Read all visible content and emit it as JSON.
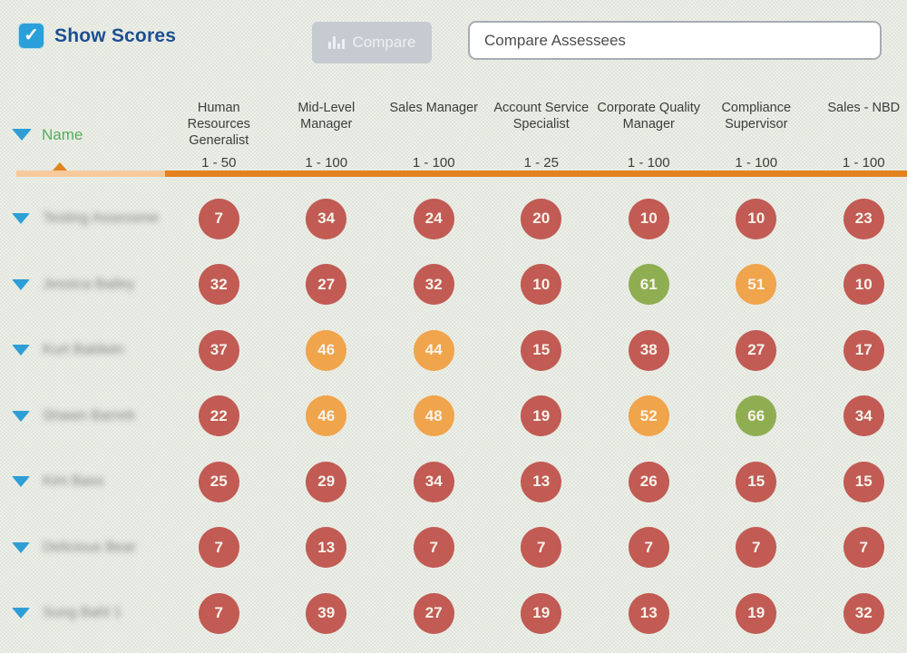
{
  "controls": {
    "show_scores_label": "Show Scores",
    "show_scores_checked": true,
    "checkmark_glyph": "✓",
    "compare_button_label": "Compare",
    "search_placeholder": "Compare Assessees"
  },
  "colors": {
    "score_red": "#c15b54",
    "score_orange": "#f0a44c",
    "score_green": "#8fae52",
    "checkbox_blue": "#2b9fd9",
    "show_scores_text_blue": "#1d4e91",
    "name_header_green": "#55ab5e",
    "sort_bar_orange": "#e2821f",
    "sort_bar_light_orange": "#f6ca9c",
    "compare_button_gray": "#c6cbd1"
  },
  "table": {
    "name_header": "Name",
    "names_blurred": true,
    "columns": [
      {
        "label": "Human Resources Generalist",
        "range": "1 - 50"
      },
      {
        "label": "Mid-Level Manager",
        "range": "1 - 100"
      },
      {
        "label": "Sales Manager",
        "range": "1 - 100"
      },
      {
        "label": "Account Service Specialist",
        "range": "1 - 25"
      },
      {
        "label": "Corporate Quality Manager",
        "range": "1 - 100"
      },
      {
        "label": "Compliance Supervisor",
        "range": "1 - 100"
      },
      {
        "label": "Sales - NBD",
        "range": "1 - 100"
      }
    ],
    "rows": [
      {
        "name": "Testing Assessme...",
        "scores": [
          {
            "value": 7,
            "level": "red"
          },
          {
            "value": 34,
            "level": "red"
          },
          {
            "value": 24,
            "level": "red"
          },
          {
            "value": 20,
            "level": "red"
          },
          {
            "value": 10,
            "level": "red"
          },
          {
            "value": 10,
            "level": "red"
          },
          {
            "value": 23,
            "level": "red"
          }
        ]
      },
      {
        "name": "Jessica Bailey",
        "scores": [
          {
            "value": 32,
            "level": "red"
          },
          {
            "value": 27,
            "level": "red"
          },
          {
            "value": 32,
            "level": "red"
          },
          {
            "value": 10,
            "level": "red"
          },
          {
            "value": 61,
            "level": "green"
          },
          {
            "value": 51,
            "level": "orange"
          },
          {
            "value": 10,
            "level": "red"
          }
        ]
      },
      {
        "name": "Kurt Baldwin",
        "scores": [
          {
            "value": 37,
            "level": "red"
          },
          {
            "value": 46,
            "level": "orange"
          },
          {
            "value": 44,
            "level": "orange"
          },
          {
            "value": 15,
            "level": "red"
          },
          {
            "value": 38,
            "level": "red"
          },
          {
            "value": 27,
            "level": "red"
          },
          {
            "value": 17,
            "level": "red"
          }
        ]
      },
      {
        "name": "Shawn Barrett",
        "scores": [
          {
            "value": 22,
            "level": "red"
          },
          {
            "value": 46,
            "level": "orange"
          },
          {
            "value": 48,
            "level": "orange"
          },
          {
            "value": 19,
            "level": "red"
          },
          {
            "value": 52,
            "level": "orange"
          },
          {
            "value": 66,
            "level": "green"
          },
          {
            "value": 34,
            "level": "red"
          }
        ]
      },
      {
        "name": "Kim Bass",
        "scores": [
          {
            "value": 25,
            "level": "red"
          },
          {
            "value": 29,
            "level": "red"
          },
          {
            "value": 34,
            "level": "red"
          },
          {
            "value": 13,
            "level": "red"
          },
          {
            "value": 26,
            "level": "red"
          },
          {
            "value": 15,
            "level": "red"
          },
          {
            "value": 15,
            "level": "red"
          }
        ]
      },
      {
        "name": "Delicious Bear",
        "scores": [
          {
            "value": 7,
            "level": "red"
          },
          {
            "value": 13,
            "level": "red"
          },
          {
            "value": 7,
            "level": "red"
          },
          {
            "value": 7,
            "level": "red"
          },
          {
            "value": 7,
            "level": "red"
          },
          {
            "value": 7,
            "level": "red"
          },
          {
            "value": 7,
            "level": "red"
          }
        ]
      },
      {
        "name": "Sung Bahl 1",
        "scores": [
          {
            "value": 7,
            "level": "red"
          },
          {
            "value": 39,
            "level": "red"
          },
          {
            "value": 27,
            "level": "red"
          },
          {
            "value": 19,
            "level": "red"
          },
          {
            "value": 13,
            "level": "red"
          },
          {
            "value": 19,
            "level": "red"
          },
          {
            "value": 32,
            "level": "red"
          }
        ]
      }
    ]
  }
}
